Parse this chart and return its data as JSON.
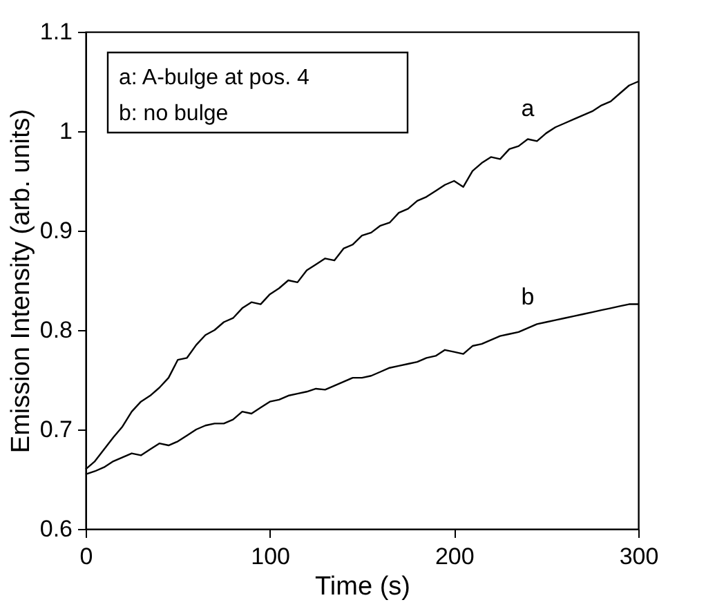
{
  "chart_data": {
    "type": "line",
    "xlabel": "Time (s)",
    "ylabel": "Emission Intensity (arb. units)",
    "x": [
      0,
      5,
      10,
      15,
      20,
      25,
      30,
      35,
      40,
      45,
      50,
      55,
      60,
      65,
      70,
      75,
      80,
      85,
      90,
      95,
      100,
      105,
      110,
      115,
      120,
      125,
      130,
      135,
      140,
      145,
      150,
      155,
      160,
      165,
      170,
      175,
      180,
      185,
      190,
      195,
      200,
      205,
      210,
      215,
      220,
      225,
      230,
      235,
      240,
      245,
      250,
      255,
      260,
      265,
      270,
      275,
      280,
      285,
      290,
      295,
      300
    ],
    "series": [
      {
        "name": "a",
        "color": "#000000",
        "values": [
          0.66,
          0.668,
          0.68,
          0.692,
          0.703,
          0.718,
          0.728,
          0.734,
          0.742,
          0.752,
          0.77,
          0.772,
          0.785,
          0.795,
          0.8,
          0.808,
          0.812,
          0.822,
          0.828,
          0.826,
          0.836,
          0.842,
          0.85,
          0.848,
          0.86,
          0.866,
          0.872,
          0.87,
          0.882,
          0.886,
          0.895,
          0.898,
          0.905,
          0.908,
          0.918,
          0.922,
          0.93,
          0.934,
          0.94,
          0.946,
          0.95,
          0.944,
          0.96,
          0.968,
          0.974,
          0.972,
          0.982,
          0.985,
          0.992,
          0.99,
          0.998,
          1.004,
          1.008,
          1.012,
          1.016,
          1.02,
          1.026,
          1.03,
          1.038,
          1.046,
          1.05
        ]
      },
      {
        "name": "b",
        "color": "#000000",
        "values": [
          0.655,
          0.658,
          0.662,
          0.668,
          0.672,
          0.676,
          0.674,
          0.68,
          0.686,
          0.684,
          0.688,
          0.694,
          0.7,
          0.704,
          0.706,
          0.706,
          0.71,
          0.718,
          0.716,
          0.722,
          0.728,
          0.73,
          0.734,
          0.736,
          0.738,
          0.741,
          0.74,
          0.744,
          0.748,
          0.752,
          0.752,
          0.754,
          0.758,
          0.762,
          0.764,
          0.766,
          0.768,
          0.772,
          0.774,
          0.78,
          0.778,
          0.776,
          0.784,
          0.786,
          0.79,
          0.794,
          0.796,
          0.798,
          0.802,
          0.806,
          0.808,
          0.81,
          0.812,
          0.814,
          0.816,
          0.818,
          0.82,
          0.822,
          0.824,
          0.826,
          0.826
        ]
      }
    ],
    "annotations": [
      "a: A-bulge at pos. 4",
      "b: no bulge"
    ],
    "xlim": [
      0,
      300
    ],
    "xticks": [
      0,
      100,
      200,
      300
    ],
    "ylim": [
      0.6,
      1.1
    ],
    "yticks": [
      0.6,
      0.7,
      0.8,
      0.9,
      1,
      1.1
    ],
    "grid": false,
    "marker": "none",
    "line_style": "solid"
  }
}
